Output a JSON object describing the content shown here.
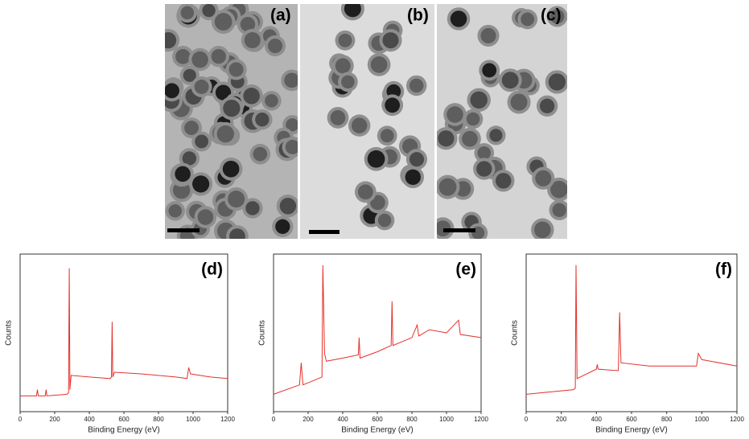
{
  "images": [
    {
      "label": "(a)"
    },
    {
      "label": "(b)"
    },
    {
      "label": "(c)"
    }
  ],
  "chart_data": [
    {
      "type": "line",
      "label": "(d)",
      "xlabel": "Binding Energy (eV)",
      "ylabel": "Counts",
      "color": "#e3312b",
      "xlim": [
        0,
        1200
      ],
      "xticks": [
        0,
        200,
        400,
        600,
        800,
        1000,
        1200
      ],
      "ylim": [
        0,
        100
      ],
      "x": [
        0,
        95,
        100,
        105,
        145,
        150,
        155,
        270,
        280,
        284,
        288,
        295,
        400,
        520,
        528,
        532,
        536,
        545,
        700,
        900,
        965,
        975,
        985,
        1100,
        1200
      ],
      "values": [
        10,
        10,
        14,
        10,
        10,
        14,
        10,
        11,
        12,
        91,
        14,
        23,
        22,
        21,
        22,
        57,
        22,
        25,
        24,
        22,
        21,
        28,
        24,
        22,
        21
      ]
    },
    {
      "type": "line",
      "label": "(e)",
      "xlabel": "Binding Energy (eV)",
      "ylabel": "Counts",
      "color": "#e3312b",
      "xlim": [
        0,
        1200
      ],
      "xticks": [
        0,
        200,
        400,
        600,
        800,
        1000,
        1200
      ],
      "ylim": [
        0,
        100
      ],
      "x": [
        0,
        150,
        160,
        170,
        280,
        285,
        295,
        305,
        400,
        490,
        495,
        500,
        600,
        680,
        685,
        690,
        800,
        830,
        840,
        900,
        1000,
        1070,
        1080,
        1200
      ],
      "values": [
        11,
        17,
        31,
        17,
        22,
        93,
        37,
        32,
        34,
        36,
        47,
        34,
        38,
        42,
        70,
        42,
        47,
        55,
        48,
        52,
        50,
        58,
        49,
        47
      ]
    },
    {
      "type": "line",
      "label": "(f)",
      "xlabel": "Binding Energy (eV)",
      "ylabel": "Counts",
      "color": "#e3312b",
      "xlim": [
        0,
        1200
      ],
      "xticks": [
        0,
        200,
        400,
        600,
        800,
        1000,
        1200
      ],
      "ylim": [
        0,
        100
      ],
      "x": [
        0,
        270,
        280,
        284,
        290,
        400,
        405,
        410,
        525,
        532,
        540,
        700,
        970,
        980,
        1000,
        1200
      ],
      "values": [
        11,
        14,
        15,
        93,
        21,
        27,
        30,
        27,
        26,
        63,
        31,
        29,
        29,
        37,
        33,
        29
      ]
    }
  ]
}
